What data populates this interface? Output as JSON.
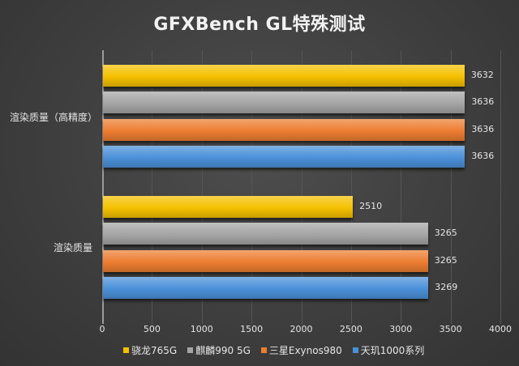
{
  "chart_data": {
    "type": "bar",
    "orientation": "horizontal",
    "title": "GFXBench GL特殊测试",
    "categories": [
      "渲染质量（高精度）",
      "渲染质量"
    ],
    "series": [
      {
        "name": "骁龙765G",
        "color": "#F5C000",
        "values": [
          3632,
          2510
        ]
      },
      {
        "name": "麒麟990 5G",
        "color": "#A5A5A5",
        "values": [
          3636,
          3265
        ]
      },
      {
        "name": "三星Exynos980",
        "color": "#ED7D31",
        "values": [
          3636,
          3265
        ]
      },
      {
        "name": "天玑1000系列",
        "color": "#4A90D9",
        "values": [
          3636,
          3269
        ]
      }
    ],
    "xlabel": "",
    "ylabel": "",
    "xlim": [
      0,
      4000
    ],
    "xticks": [
      0,
      500,
      1000,
      1500,
      2000,
      2500,
      3000,
      3500,
      4000
    ],
    "grid": true,
    "legend_position": "bottom"
  },
  "labels": {
    "title": "GFXBench GL特殊测试",
    "cat0": "渲染质量（高精度）",
    "cat1": "渲染质量",
    "ticks": [
      "0",
      "500",
      "1000",
      "1500",
      "2000",
      "2500",
      "3000",
      "3500",
      "4000"
    ],
    "values": {
      "g0": [
        "3632",
        "3636",
        "3636",
        "3636"
      ],
      "g1": [
        "2510",
        "3265",
        "3265",
        "3269"
      ]
    },
    "legend": [
      "骁龙765G",
      "麒麟990 5G",
      "三星Exynos980",
      "天玑1000系列"
    ]
  }
}
